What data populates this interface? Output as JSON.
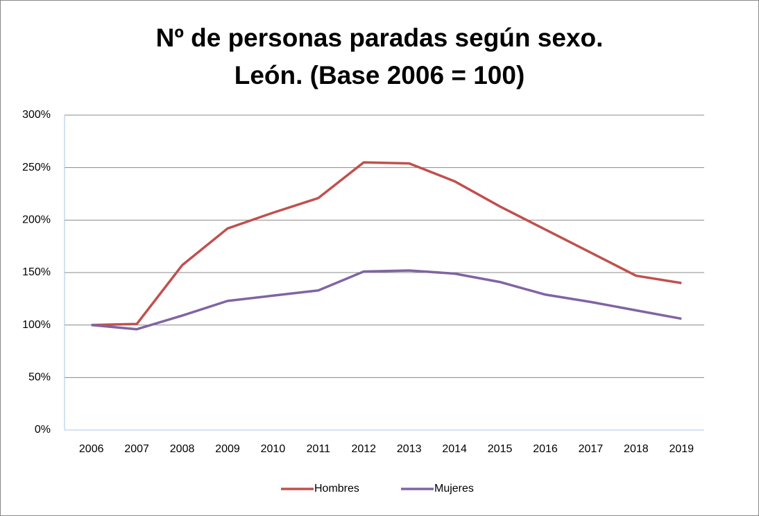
{
  "chart_data": {
    "type": "line",
    "title": "Nº de personas paradas según sexo. León. (Base 2006 = 100)",
    "categories": [
      "2006",
      "2007",
      "2008",
      "2009",
      "2010",
      "2011",
      "2012",
      "2013",
      "2014",
      "2015",
      "2016",
      "2017",
      "2018",
      "2019"
    ],
    "series": [
      {
        "name": "Hombres",
        "color": "#c0504d",
        "values": [
          100,
          101,
          157,
          192,
          207,
          221,
          255,
          254,
          237,
          213,
          191,
          169,
          147,
          140
        ]
      },
      {
        "name": "Mujeres",
        "color": "#8064a2",
        "values": [
          100,
          96,
          109,
          123,
          128,
          133,
          151,
          152,
          149,
          141,
          129,
          122,
          114,
          106
        ]
      }
    ],
    "ylim": [
      0,
      300
    ],
    "yticks": [
      {
        "value": 0,
        "label": "0%"
      },
      {
        "value": 50,
        "label": "50%"
      },
      {
        "value": 100,
        "label": "100%"
      },
      {
        "value": 150,
        "label": "150%"
      },
      {
        "value": 200,
        "label": "200%"
      },
      {
        "value": 250,
        "label": "250%"
      },
      {
        "value": 300,
        "label": "300%"
      }
    ],
    "grid": true,
    "legend": "bottom"
  }
}
